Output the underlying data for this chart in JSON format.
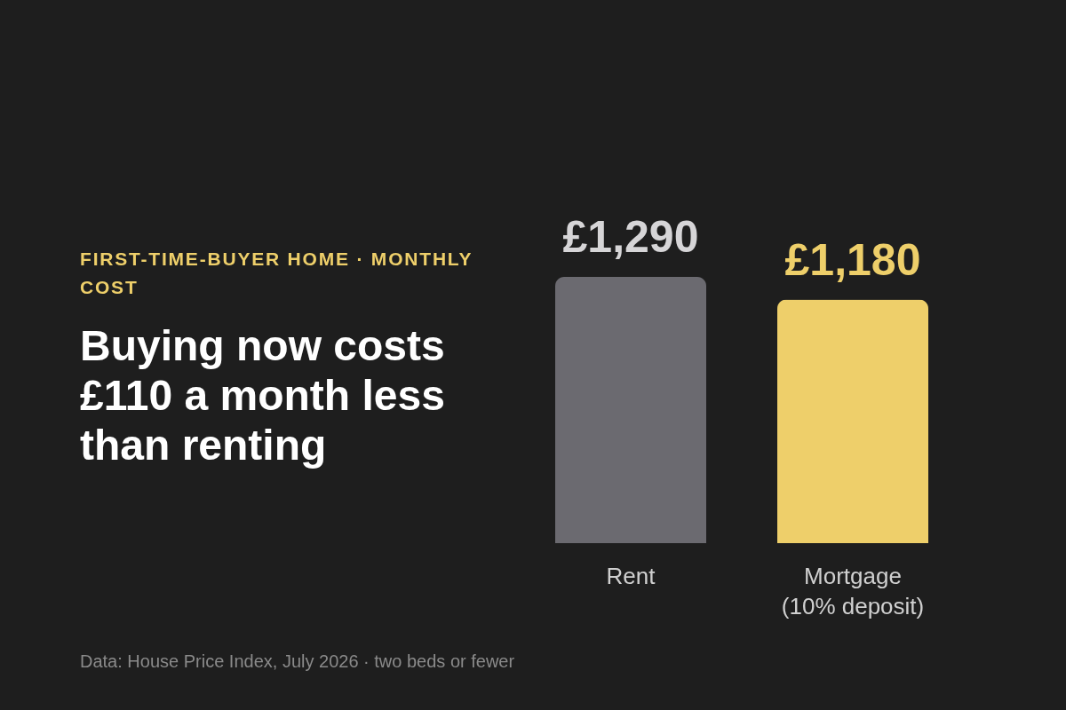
{
  "chart_data": {
    "type": "bar",
    "title": "Buying now costs £110 a month less than renting",
    "subtitle": "FIRST-TIME-BUYER HOME · MONTHLY COST",
    "categories": [
      "Rent",
      "Mortgage (10% deposit)"
    ],
    "values": [
      1290,
      1180
    ],
    "colors": [
      "#6b6a70",
      "#eecf6a"
    ],
    "value_labels": [
      "£1,290",
      "£1,180"
    ],
    "tick_labels": "x",
    "annotations": [
      "Data: House Price Index, July 2026 · two beds or fewer"
    ]
  }
}
